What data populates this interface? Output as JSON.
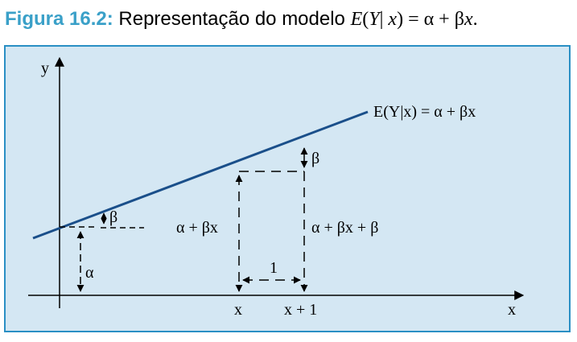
{
  "caption": {
    "label": "Figura 16.2:",
    "text": " Representação do modelo ",
    "equation_parts": [
      "E",
      "(",
      "Y",
      "| ",
      "x",
      ") = α + β",
      "x",
      "."
    ]
  },
  "diagram": {
    "axis_x_label": "x",
    "axis_y_label": "y",
    "line_label": "E(Y|x) = α + βx",
    "intercept_label": "α",
    "small_slope_label": "β",
    "slope_rise_label": "β",
    "value_at_x_label": "α + βx",
    "value_at_x1_label": "α + βx + β",
    "run_label": "1",
    "tick_x_label": "x",
    "tick_x1_label": "x + 1"
  },
  "colors": {
    "figure_background": "#d4e7f3",
    "figure_border": "#2a8fc4",
    "caption_label": "#3aa0c8",
    "line": "#1a4f8a"
  }
}
